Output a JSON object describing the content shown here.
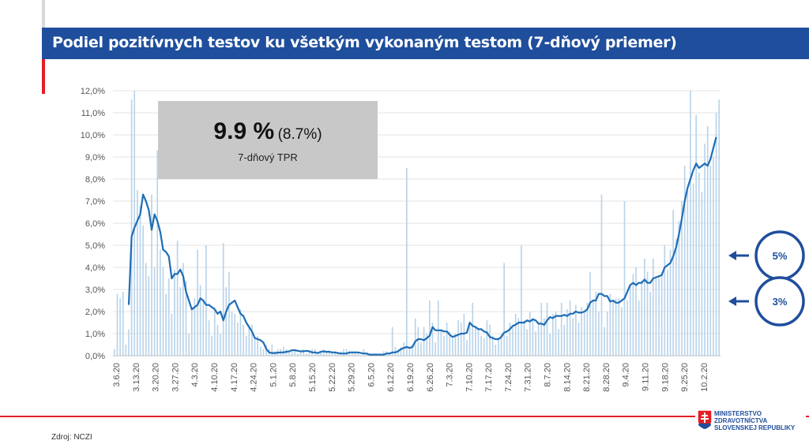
{
  "header": {
    "title": "Podiel pozitívnych testov ku všetkým vykonaným testom (7-dňový priemer)"
  },
  "info": {
    "value": "9.9 %",
    "prior": "(8.7%)",
    "label": "7-dňový TPR"
  },
  "markers": [
    {
      "label": "5%",
      "value": 5
    },
    {
      "label": "3%",
      "value": 3
    }
  ],
  "footer": {
    "source": "Zdroj: NCZI"
  },
  "logo": {
    "line1": "MINISTERSTVO",
    "line2": "ZDRAVOTNÍCTVA",
    "line3": "SLOVENSKEJ REPUBLIKY"
  },
  "colors": {
    "line": "#1f6db5",
    "bars": "#b8d3ea",
    "marker": "#1f4e9c",
    "header": "#1f4e9c",
    "accent": "#e31e24"
  },
  "chart_data": {
    "type": "bar+line",
    "ylim": [
      0,
      12
    ],
    "y_ticks": [
      "0,0%",
      "1,0%",
      "2,0%",
      "3,0%",
      "4,0%",
      "5,0%",
      "6,0%",
      "7,0%",
      "8,0%",
      "9,0%",
      "10,0%",
      "11,0%",
      "12,0%"
    ],
    "x_tick_labels": [
      "3.6.20",
      "3.13.20",
      "3.20.20",
      "3.27.20",
      "4.3.20",
      "4.10.20",
      "4.17.20",
      "4.24.20",
      "5.1.20",
      "5.8.20",
      "5.15.20",
      "5.22.20",
      "5.29.20",
      "6.5.20",
      "6.12.20",
      "6.19.20",
      "6.26.20",
      "7.3.20",
      "7.10.20",
      "7.17.20",
      "7.24.20",
      "7.31.20",
      "8.7.20",
      "8.14.20",
      "8.21.20",
      "8.28.20",
      "9.4.20",
      "9.11.20",
      "9.18.20",
      "9.25.20",
      "10.2.20"
    ],
    "grid": true,
    "series": [
      {
        "type": "bar",
        "values": [
          0.3,
          2.8,
          2.6,
          2.9,
          0.5,
          1.2,
          11.6,
          12,
          7.5,
          6.8,
          5.9,
          4.2,
          3.6,
          7.3,
          4.0,
          9.3,
          4.8,
          4.0,
          2.8,
          3.5,
          1.9,
          3.9,
          5.2,
          3.1,
          4.2,
          3.4,
          1.0,
          2.2,
          2.6,
          4.8,
          3.2,
          2.5,
          5.0,
          1.6,
          0.9,
          2.2,
          1.4,
          1.0,
          5.1,
          3.1,
          3.8,
          2.0,
          1.9,
          1.5,
          2.1,
          1.4,
          0.9,
          1.3,
          1.4,
          0.8,
          0.9,
          0.4,
          0.3,
          0.5,
          0.3,
          0.5,
          0.2,
          0.3,
          0.3,
          0.4,
          0.3,
          0.2,
          0.2,
          0.3,
          0.1,
          0.2,
          0.3,
          0.1,
          0.2,
          0.3,
          0.3,
          0.1,
          0.2,
          0.3,
          0.2,
          0.2,
          0.1,
          0.2,
          0.1,
          0.2,
          0.3,
          0.3,
          0.1,
          0.2,
          0.2,
          0.1,
          0.0,
          0.3,
          0.1,
          0.1,
          0.1,
          0.1,
          0.1,
          0.0,
          0.2,
          0.2,
          0.1,
          1.3,
          0.4,
          0.3,
          0.4,
          0.6,
          8.5,
          0.4,
          0.5,
          1.7,
          1.3,
          0.6,
          1.3,
          1.0,
          2.5,
          1.5,
          0.6,
          2.5,
          1.2,
          0.9,
          1.5,
          1.1,
          0.8,
          1.0,
          1.6,
          1.5,
          1.9,
          0.7,
          1.5,
          2.4,
          1.3,
          1.2,
          0.9,
          0.8,
          1.6,
          1.4,
          0.9,
          0.5,
          0.8,
          1.0,
          4.2,
          0.9,
          1.5,
          1.3,
          1.9,
          1.7,
          5.0,
          1.6,
          1.2,
          2.0,
          1.7,
          1.1,
          1.5,
          2.4,
          1.7,
          2.4,
          1.0,
          1.9,
          2.0,
          1.2,
          2.4,
          1.4,
          2.1,
          2.5,
          1.7,
          2.3,
          1.5,
          2.2,
          2.0,
          2.4,
          3.8,
          2.5,
          2.9,
          2.0,
          7.3,
          1.3,
          2.0,
          2.8,
          2.5,
          2.6,
          2.6,
          2.2,
          7.0,
          2.5,
          3.2,
          3.7,
          4.0,
          2.5,
          3.4,
          4.4,
          3.8,
          2.9,
          4.4,
          3.5,
          3.6,
          3.8,
          5.0,
          3.9,
          4.8,
          6.6,
          5.3,
          6.1,
          7.0,
          8.6,
          7.5,
          12.0,
          7.8,
          10.9,
          8.3,
          7.4,
          9.6,
          10.4,
          8.6,
          9.0,
          11.0,
          11.6
        ]
      },
      {
        "type": "line",
        "name": "7-dňový TPR",
        "values": [
          null,
          null,
          null,
          null,
          null,
          2.3,
          5.4,
          5.8,
          6.1,
          6.4,
          7.3,
          7.0,
          6.6,
          5.7,
          6.4,
          6.1,
          5.6,
          4.8,
          4.7,
          4.5,
          3.5,
          3.7,
          3.7,
          3.9,
          3.6,
          2.9,
          2.5,
          2.1,
          2.2,
          2.3,
          2.6,
          2.5,
          2.3,
          2.3,
          2.2,
          2.1,
          1.9,
          2.0,
          1.6,
          2.0,
          2.3,
          2.4,
          2.5,
          2.2,
          1.9,
          1.8,
          1.5,
          1.3,
          1.1,
          0.8,
          0.75,
          0.7,
          0.6,
          0.3,
          0.15,
          0.12,
          0.12,
          0.14,
          0.15,
          0.15,
          0.18,
          0.2,
          0.25,
          0.25,
          0.22,
          0.2,
          0.2,
          0.22,
          0.2,
          0.15,
          0.15,
          0.12,
          0.18,
          0.2,
          0.18,
          0.18,
          0.15,
          0.15,
          0.12,
          0.1,
          0.1,
          0.1,
          0.15,
          0.15,
          0.15,
          0.15,
          0.12,
          0.1,
          0.1,
          0.05,
          0.05,
          0.05,
          0.05,
          0.05,
          0.05,
          0.1,
          0.1,
          0.15,
          0.15,
          0.2,
          0.3,
          0.35,
          0.4,
          0.35,
          0.4,
          0.65,
          0.75,
          0.75,
          0.7,
          0.8,
          0.9,
          1.3,
          1.15,
          1.15,
          1.15,
          1.1,
          1.1,
          0.95,
          0.85,
          0.9,
          0.95,
          1.0,
          1.0,
          1.05,
          1.5,
          1.35,
          1.3,
          1.2,
          1.2,
          1.1,
          1.05,
          0.85,
          0.8,
          0.75,
          0.75,
          0.85,
          1.05,
          1.1,
          1.2,
          1.35,
          1.4,
          1.5,
          1.5,
          1.5,
          1.6,
          1.55,
          1.65,
          1.6,
          1.45,
          1.45,
          1.4,
          1.6,
          1.75,
          1.7,
          1.8,
          1.8,
          1.8,
          1.85,
          1.8,
          1.9,
          1.9,
          2.0,
          1.95,
          1.95,
          2.0,
          2.1,
          2.4,
          2.5,
          2.5,
          2.8,
          2.8,
          2.7,
          2.7,
          2.45,
          2.5,
          2.4,
          2.4,
          2.5,
          2.6,
          2.9,
          3.2,
          3.3,
          3.2,
          3.3,
          3.3,
          3.45,
          3.3,
          3.3,
          3.5,
          3.55,
          3.6,
          3.65,
          4.0,
          4.1,
          4.2,
          4.5,
          4.9,
          5.5,
          6.2,
          7.0,
          7.6,
          8.0,
          8.4,
          8.7,
          8.5,
          8.6,
          8.7,
          8.6,
          8.9,
          9.4,
          9.9
        ]
      }
    ]
  }
}
